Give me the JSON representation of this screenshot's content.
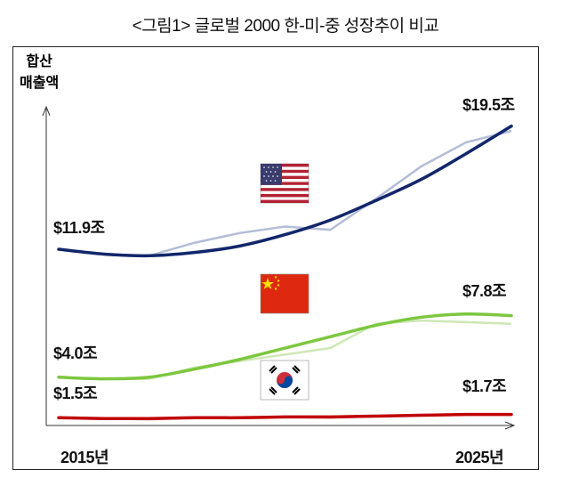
{
  "title": "<그림1> 글로벌 2000 한-미-중 성장추이 비교",
  "chart_data": {
    "type": "line",
    "title": "<그림1> 글로벌 2000 한-미-중 성장추이 비교",
    "ylabel_line1": "합산",
    "ylabel_line2": "매출액",
    "xlabel": "",
    "x": [
      2015,
      2016,
      2017,
      2018,
      2019,
      2020,
      2021,
      2022,
      2023,
      2024,
      2025
    ],
    "x_tick_labels": {
      "start": "2015년",
      "end": "2025년"
    },
    "grid": false,
    "series": [
      {
        "name": "미국",
        "flag": "us",
        "color": "#12266b",
        "raw_color": "#b3bdd6",
        "trend": [
          11.9,
          11.6,
          11.5,
          11.7,
          12.1,
          12.8,
          13.7,
          14.9,
          16.2,
          17.8,
          19.5
        ],
        "raw": [
          11.9,
          11.6,
          11.5,
          12.3,
          12.9,
          13.3,
          13.1,
          15.0,
          17.0,
          18.5,
          19.2
        ],
        "start_label": "$11.9조",
        "end_label": "$19.5조"
      },
      {
        "name": "중국",
        "flag": "cn",
        "color": "#7dc73f",
        "raw_color": "#cde8b4",
        "trend": [
          4.0,
          3.9,
          4.0,
          4.5,
          5.1,
          5.8,
          6.5,
          7.2,
          7.7,
          7.9,
          7.8
        ],
        "raw": [
          4.0,
          3.9,
          3.9,
          4.6,
          5.0,
          5.4,
          5.8,
          7.3,
          7.5,
          7.4,
          7.3
        ],
        "start_label": "$4.0조",
        "end_label": "$7.8조"
      },
      {
        "name": "한국",
        "flag": "kr",
        "color": "#c00000",
        "raw_color": "#e8a0a0",
        "trend": [
          1.5,
          1.45,
          1.45,
          1.5,
          1.5,
          1.55,
          1.55,
          1.6,
          1.65,
          1.7,
          1.7
        ],
        "raw": [
          1.5,
          1.45,
          1.4,
          1.5,
          1.5,
          1.55,
          1.5,
          1.6,
          1.65,
          1.7,
          1.7
        ],
        "start_label": "$1.5조",
        "end_label": "$1.7조"
      }
    ]
  }
}
